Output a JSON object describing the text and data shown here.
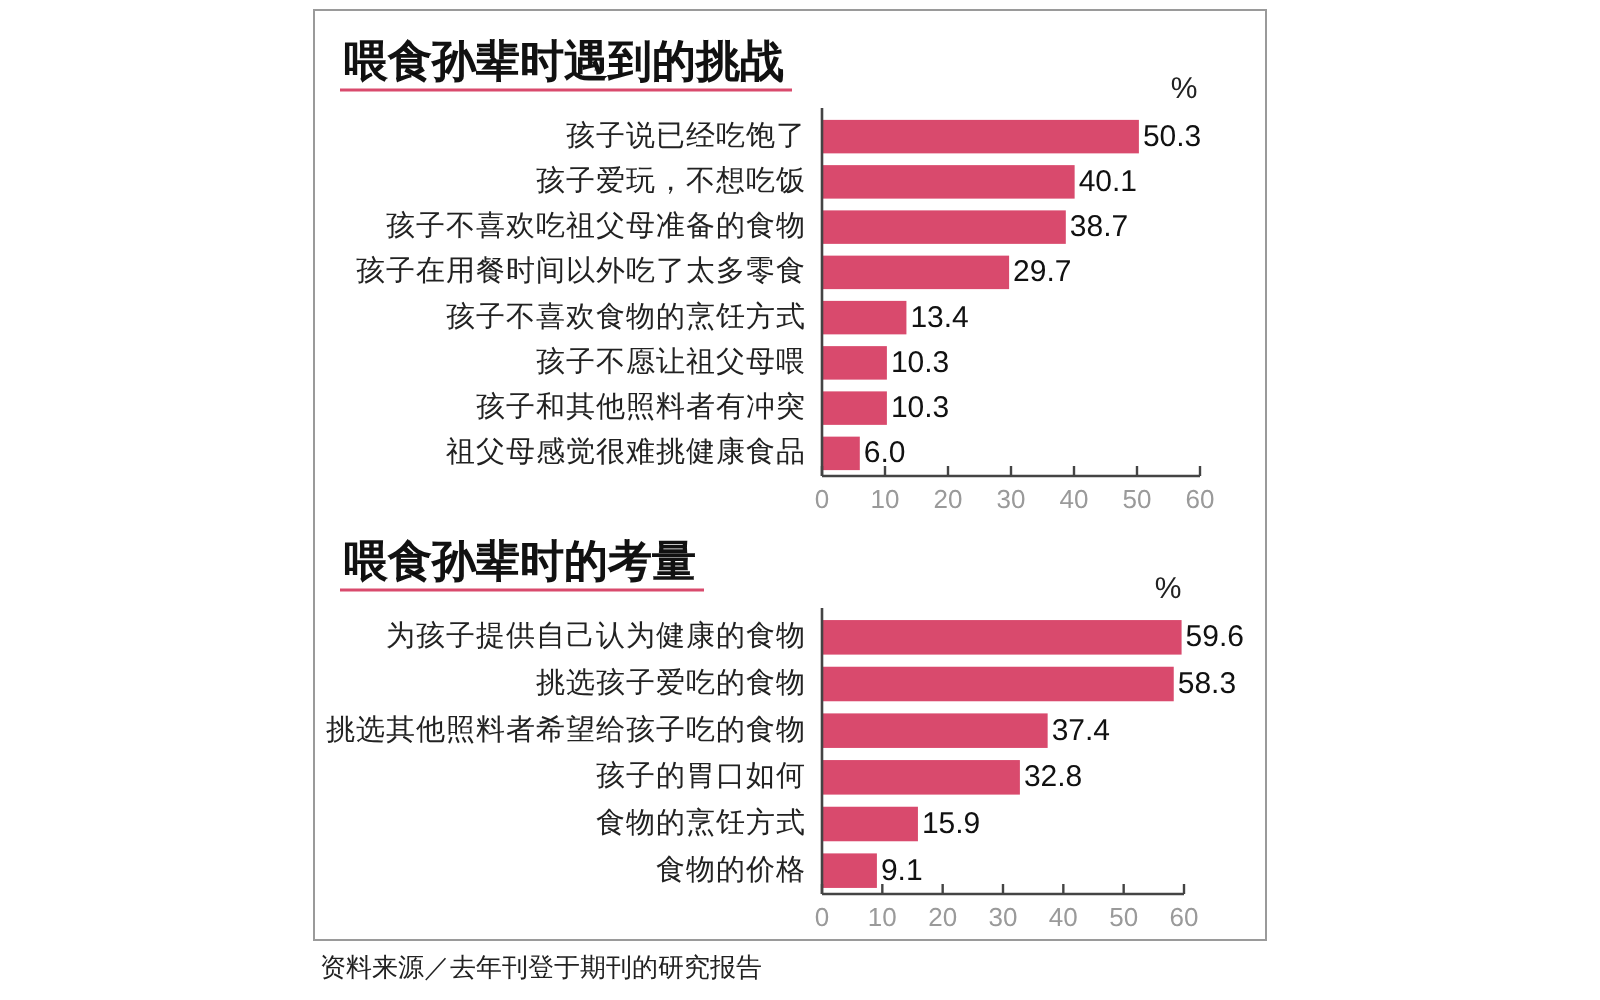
{
  "chart_data": [
    {
      "type": "bar",
      "orientation": "horizontal",
      "title": "喂食孙辈时遇到的挑战",
      "xlabel": "%",
      "categories": [
        "孩子说已经吃饱了",
        "孩子爱玩，不想吃饭",
        "孩子不喜欢吃祖父母准备的食物",
        "孩子在用餐时间以外吃了太多零食",
        "孩子不喜欢食物的烹饪方式",
        "孩子不愿让祖父母喂",
        "孩子和其他照料者有冲突",
        "祖父母感觉很难挑健康食品"
      ],
      "values": [
        50.3,
        40.1,
        38.7,
        29.7,
        13.4,
        10.3,
        10.3,
        6.0
      ],
      "value_labels": [
        "50.3",
        "40.1",
        "38.7",
        "29.7",
        "13.4",
        "10.3",
        "10.3",
        "6.0"
      ],
      "color": "#d94a6d",
      "xlim": [
        0,
        60
      ],
      "xticks": [
        0,
        10,
        20,
        30,
        40,
        50,
        60
      ]
    },
    {
      "type": "bar",
      "orientation": "horizontal",
      "title": "喂食孙辈时的考量",
      "xlabel": "%",
      "categories": [
        "为孩子提供自己认为健康的食物",
        "挑选孩子爱吃的食物",
        "挑选其他照料者希望给孩子吃的食物",
        "孩子的胃口如何",
        "食物的烹饪方式",
        "食物的价格"
      ],
      "values": [
        59.6,
        58.3,
        37.4,
        32.8,
        15.9,
        9.1
      ],
      "value_labels": [
        "59.6",
        "58.3",
        "37.4",
        "32.8",
        "15.9",
        "9.1"
      ],
      "color": "#d94a6d",
      "xlim": [
        0,
        60
      ],
      "xticks": [
        0,
        10,
        20,
        30,
        40,
        50,
        60
      ],
      "annotations": [
        "资料来源／去年刊登于期刊的研究报告"
      ]
    }
  ]
}
